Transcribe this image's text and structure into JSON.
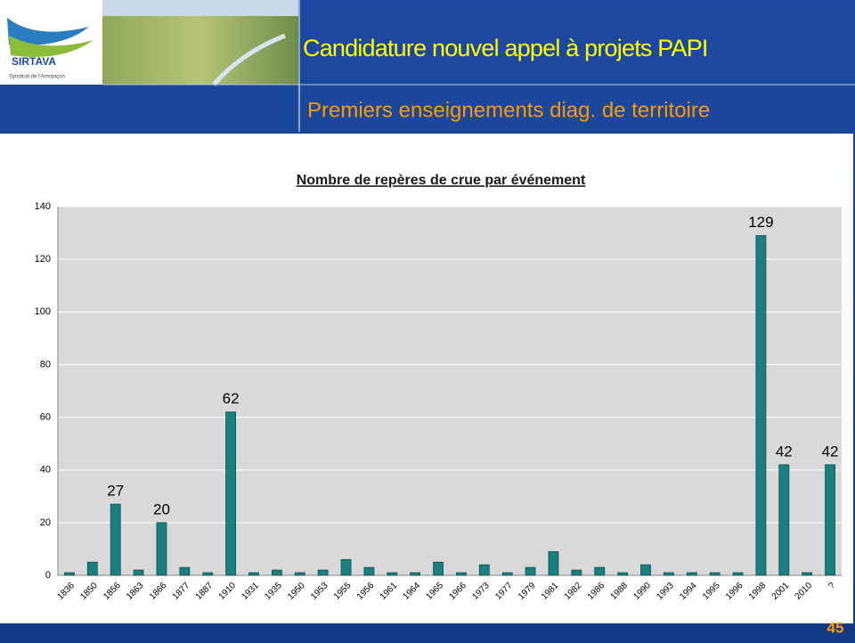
{
  "header": {
    "title": "Candidature nouvel appel à projets PAPI",
    "subtitle": "Premiers enseignements diag. de territoire",
    "logo_name": "SIRTAVA",
    "logo_caption": "Syndicat de l'Armançon"
  },
  "page_number": "45",
  "chart_data": {
    "type": "bar",
    "title": "Nombre de repères de crue par événement",
    "categories": [
      "1836",
      "1850",
      "1856",
      "1863",
      "1866",
      "1877",
      "1887",
      "1910",
      "1931",
      "1935",
      "1950",
      "1953",
      "1955",
      "1956",
      "1961",
      "1964",
      "1965",
      "1966",
      "1973",
      "1977",
      "1979",
      "1981",
      "1982",
      "1986",
      "1988",
      "1990",
      "1993",
      "1994",
      "1995",
      "1996",
      "1998",
      "2001",
      "2010",
      "?"
    ],
    "values": [
      1,
      5,
      27,
      2,
      20,
      3,
      1,
      62,
      1,
      2,
      1,
      2,
      6,
      3,
      1,
      1,
      5,
      1,
      4,
      1,
      3,
      9,
      2,
      3,
      1,
      4,
      1,
      1,
      1,
      1,
      129,
      42,
      1,
      42
    ],
    "value_labels": [
      null,
      null,
      "27",
      null,
      "20",
      null,
      null,
      "62",
      null,
      null,
      null,
      null,
      null,
      null,
      null,
      null,
      null,
      null,
      null,
      null,
      null,
      null,
      null,
      null,
      null,
      null,
      null,
      null,
      null,
      null,
      "129",
      "42",
      null,
      "42"
    ],
    "color": "#1b7f80",
    "ylim": [
      0,
      140
    ],
    "yticks": [
      0,
      20,
      40,
      60,
      80,
      100,
      120,
      140
    ],
    "grid": true
  }
}
